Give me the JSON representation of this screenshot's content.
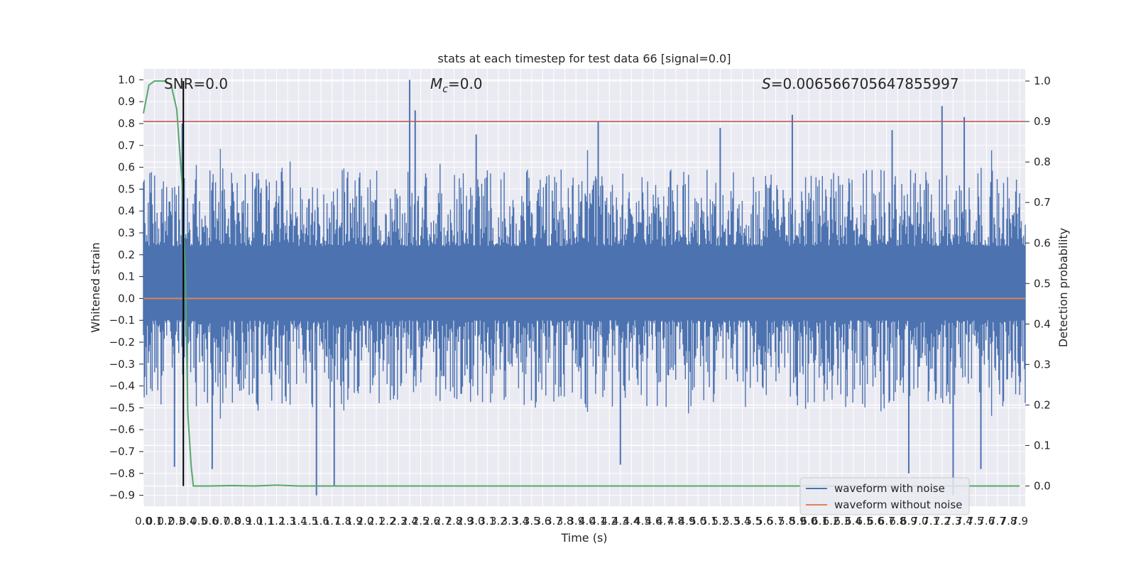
{
  "chart_data": {
    "type": "line",
    "title": "stats at each timestep for test data 66 [signal=0.0]",
    "xlabel": "Time (s)",
    "ylabel_left": "Whitened strain",
    "ylabel_right": "Detection probability",
    "annotations": {
      "snr": "SNR=0.0",
      "mc_symbol": "M",
      "mc_subscript": "c",
      "mc_value": "=0.0",
      "s_symbol": "S",
      "s_value": "=0.006566705647855997"
    },
    "xlim": [
      0.0,
      7.95
    ],
    "ylim_left": [
      -0.95,
      1.05
    ],
    "ylim_right": [
      -0.05,
      1.03
    ],
    "x_ticks": [
      "0.0",
      "0.1",
      "0.2",
      "0.3",
      "0.4",
      "0.5",
      "0.6",
      "0.7",
      "0.8",
      "0.9",
      "1.0",
      "1.1",
      "1.2",
      "1.3",
      "1.4",
      "1.5",
      "1.6",
      "1.7",
      "1.8",
      "1.9",
      "2.0",
      "2.1",
      "2.2",
      "2.3",
      "2.4",
      "2.5",
      "2.6",
      "2.7",
      "2.8",
      "2.9",
      "3.0",
      "3.1",
      "3.2",
      "3.3",
      "3.4",
      "3.5",
      "3.6",
      "3.7",
      "3.8",
      "3.9",
      "4.0",
      "4.1",
      "4.2",
      "4.3",
      "4.4",
      "4.5",
      "4.6",
      "4.7",
      "4.8",
      "4.9",
      "5.0",
      "5.1",
      "5.2",
      "5.3",
      "5.4",
      "5.5",
      "5.6",
      "5.7",
      "5.8",
      "5.9",
      "6.0",
      "6.1",
      "6.2",
      "6.3",
      "6.4",
      "6.5",
      "6.6",
      "6.7",
      "6.8",
      "6.9",
      "7.0",
      "7.1",
      "7.2",
      "7.3",
      "7.4",
      "7.5",
      "7.6",
      "7.7",
      "7.8",
      "7.9"
    ],
    "y_ticks_left": [
      "1.0",
      "0.9",
      "0.8",
      "0.7",
      "0.6",
      "0.5",
      "0.4",
      "0.3",
      "0.2",
      "0.1",
      "0.0",
      "−0.1",
      "−0.2",
      "−0.3",
      "−0.4",
      "−0.5",
      "−0.6",
      "−0.7",
      "−0.8",
      "−0.9"
    ],
    "y_ticks_right": [
      "1.0",
      "0.9",
      "0.8",
      "0.7",
      "0.6",
      "0.5",
      "0.4",
      "0.3",
      "0.2",
      "0.1",
      "0.0"
    ],
    "series": [
      {
        "name": "waveform with noise",
        "axis": "left",
        "color": "#4c72b0",
        "style": "noise",
        "band": [
          -0.1,
          0.24
        ],
        "envelope": [
          -0.55,
          0.55
        ],
        "peaks": [
          {
            "x": 2.4,
            "y": 1.0
          },
          {
            "x": 2.45,
            "y": 0.86
          },
          {
            "x": 0.35,
            "y": 0.8
          },
          {
            "x": 4.1,
            "y": 0.81
          },
          {
            "x": 5.85,
            "y": 0.84
          },
          {
            "x": 7.2,
            "y": 0.88
          },
          {
            "x": 7.4,
            "y": 0.83
          },
          {
            "x": 6.75,
            "y": 0.77
          },
          {
            "x": 5.2,
            "y": 0.78
          },
          {
            "x": 3.0,
            "y": 0.75
          },
          {
            "x": 1.56,
            "y": -0.9
          },
          {
            "x": 1.72,
            "y": -0.86
          },
          {
            "x": 6.9,
            "y": -0.8
          },
          {
            "x": 7.3,
            "y": -0.9
          },
          {
            "x": 7.55,
            "y": -0.78
          },
          {
            "x": 4.3,
            "y": -0.76
          },
          {
            "x": 0.28,
            "y": -0.77
          },
          {
            "x": 0.62,
            "y": -0.78
          }
        ]
      },
      {
        "name": "waveform without noise",
        "axis": "left",
        "color": "#dd8452",
        "x": [
          0.0,
          7.95
        ],
        "y": [
          0.0,
          0.0
        ]
      },
      {
        "name": "",
        "axis": "right",
        "color": "#55a868",
        "x": [
          0.0,
          0.05,
          0.1,
          0.15,
          0.2,
          0.25,
          0.3,
          0.35,
          0.38,
          0.4,
          0.43,
          0.45,
          0.5,
          0.6,
          0.8,
          1.0,
          1.2,
          1.4,
          1.6,
          1.8,
          2.0,
          3.0,
          4.0,
          5.0,
          6.0,
          7.0,
          7.9
        ],
        "y": [
          0.92,
          0.99,
          1.0,
          1.0,
          1.0,
          0.99,
          0.93,
          0.74,
          0.5,
          0.18,
          0.05,
          0.0,
          0.0,
          0.0,
          0.001,
          0.0,
          0.002,
          0.0,
          0.0,
          0.0,
          0.0,
          0.0,
          0.0,
          0.0,
          0.0,
          0.0,
          0.0
        ]
      }
    ],
    "threshold_right": 0.9,
    "threshold_color": "#c44e52",
    "marker_x": 0.36,
    "marker_y_right_range": [
      0.0,
      1.0
    ],
    "marker_color": "#000000",
    "legend": {
      "position": "lower-right",
      "entries": [
        "waveform with noise",
        "waveform without noise"
      ]
    },
    "grid": true,
    "background": "#eaeaf2",
    "grid_color": "#ffffff"
  }
}
